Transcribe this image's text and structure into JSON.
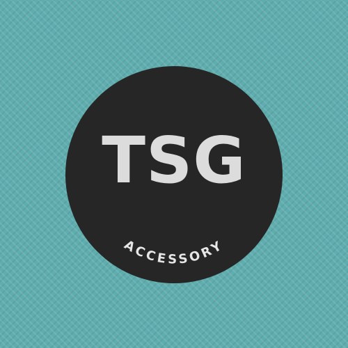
{
  "logo": {
    "title": "TSG",
    "subtitle": "ACCESSORY",
    "colors": {
      "background": "#5fadae",
      "badge": "#262626",
      "title": "#dcdcdc",
      "subtitle": "#e6e6e6"
    }
  }
}
